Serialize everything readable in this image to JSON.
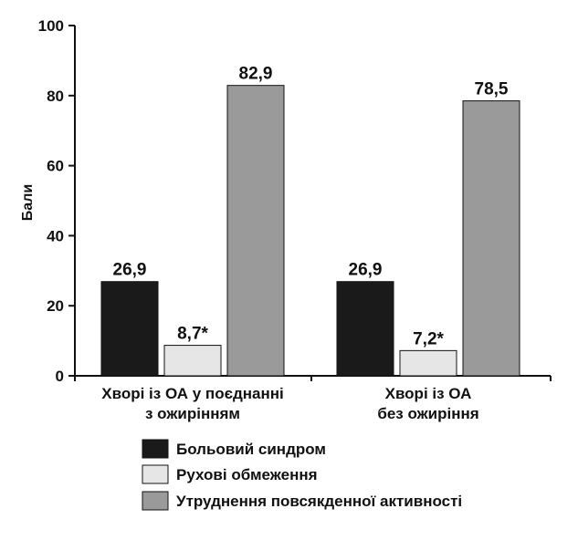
{
  "chart_data": {
    "type": "bar",
    "title": "",
    "xlabel": "",
    "ylabel": "Бали",
    "ylim": [
      0,
      100
    ],
    "yticks": [
      "0",
      "20",
      "40",
      "60",
      "80",
      "100"
    ],
    "grid": false,
    "legend_position": "bottom",
    "categories": [
      [
        "Хворі із ОА у поєднанні",
        "з ожирінням"
      ],
      [
        "Хворі із ОА",
        "без ожиріння"
      ]
    ],
    "series": [
      {
        "name": "Больовий синдром",
        "values": [
          26.9,
          26.9
        ],
        "labels": [
          "26,9",
          "26,9"
        ],
        "color": "#1a1a1a"
      },
      {
        "name": "Рухові обмеження",
        "values": [
          8.7,
          7.2
        ],
        "labels": [
          "8,7*",
          "7,2*"
        ],
        "color": "#e6e6e6"
      },
      {
        "name": "Утруднення повсякденної активності",
        "values": [
          82.9,
          78.5
        ],
        "labels": [
          "82,9",
          "78,5"
        ],
        "color": "#9a9a9a"
      }
    ]
  }
}
